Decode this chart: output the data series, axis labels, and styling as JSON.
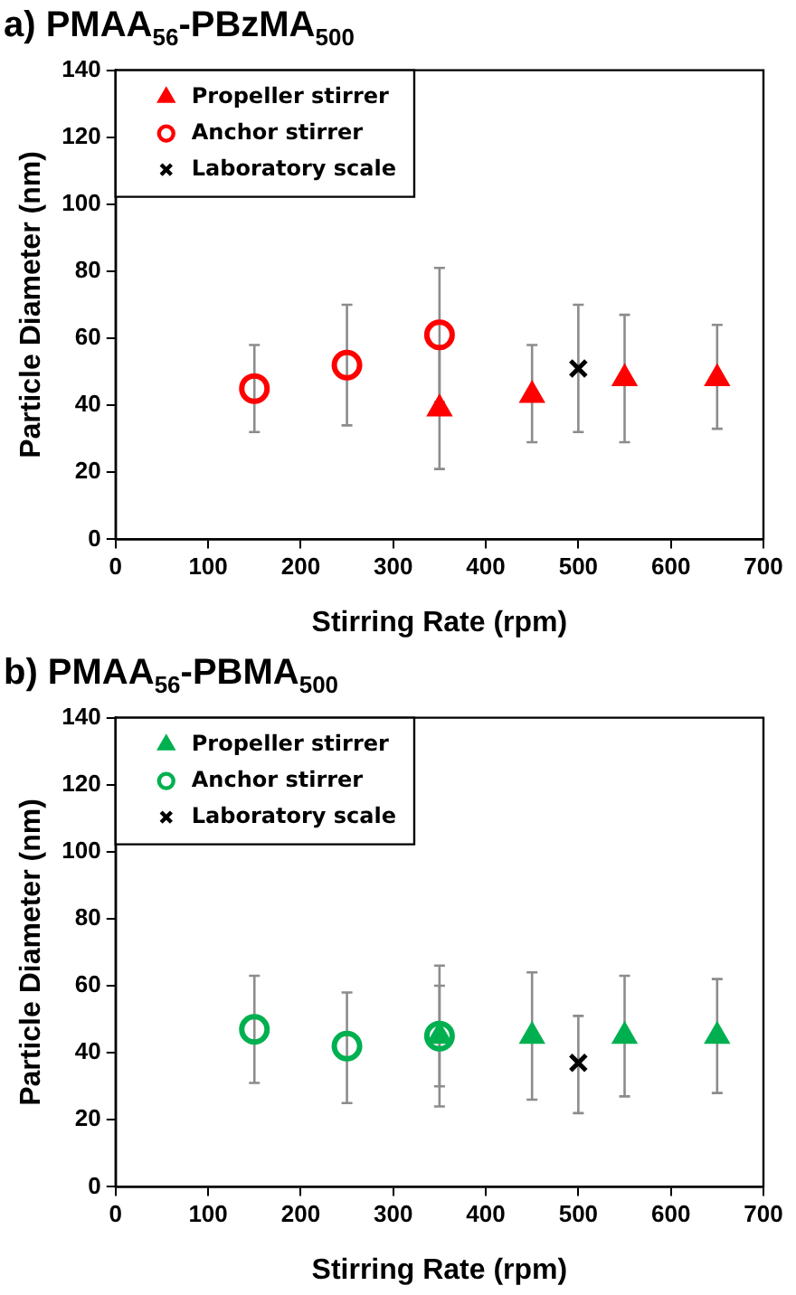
{
  "chart_data": [
    {
      "type": "scatter",
      "title": "a) PMAA$_{56}$-PBzMA$_{500}$",
      "xlabel": "Stirring Rate (rpm)",
      "ylabel": "Particle Diameter (nm)",
      "xlim": [
        0,
        700
      ],
      "xticks": [
        0,
        100,
        200,
        300,
        400,
        500,
        600,
        700
      ],
      "ylim": [
        0,
        140
      ],
      "yticks": [
        0,
        20,
        40,
        60,
        80,
        100,
        120,
        140
      ],
      "grid": false,
      "legend": "top left",
      "series": [
        {
          "name": "Propeller stirrer",
          "color": "#ff0000",
          "marker": "triangle",
          "x": [
            350,
            450,
            550,
            650
          ],
          "values": [
            39,
            43,
            48,
            48
          ],
          "errors": [
            [
              21,
              57
            ],
            [
              29,
              58
            ],
            [
              29,
              67
            ],
            [
              33,
              64
            ]
          ]
        },
        {
          "name": "Anchor stirrer",
          "color": "#ff0000",
          "marker": "circle",
          "x": [
            150,
            250,
            350
          ],
          "values": [
            45,
            52,
            61
          ],
          "errors": [
            [
              32,
              58
            ],
            [
              34,
              70
            ],
            [
              41,
              81
            ]
          ]
        },
        {
          "name": "Laboratory scale",
          "color": "#000000",
          "marker": "cross",
          "x": [
            500
          ],
          "values": [
            51
          ],
          "errors": [
            [
              32,
              70
            ]
          ]
        }
      ]
    },
    {
      "type": "scatter",
      "title": "b) PMAA$_{56}$-PBMA$_{500}$",
      "xlabel": "Stirring Rate (rpm)",
      "ylabel": "Particle Diameter (nm)",
      "xlim": [
        0,
        700
      ],
      "xticks": [
        0,
        100,
        200,
        300,
        400,
        500,
        600,
        700
      ],
      "ylim": [
        0,
        140
      ],
      "yticks": [
        0,
        20,
        40,
        60,
        80,
        100,
        120,
        140
      ],
      "grid": false,
      "legend": "top left",
      "series": [
        {
          "name": "Propeller stirrer",
          "color": "#00b050",
          "marker": "triangle",
          "x": [
            350,
            450,
            550,
            650
          ],
          "values": [
            45,
            45,
            45,
            45
          ],
          "errors": [
            [
              24,
              66
            ],
            [
              26,
              64
            ],
            [
              27,
              63
            ],
            [
              28,
              62
            ]
          ]
        },
        {
          "name": "Anchor stirrer",
          "color": "#00b050",
          "marker": "circle",
          "x": [
            150,
            250,
            350
          ],
          "values": [
            47,
            42,
            45
          ],
          "errors": [
            [
              31,
              63
            ],
            [
              25,
              58
            ],
            [
              30,
              60
            ]
          ]
        },
        {
          "name": "Laboratory scale",
          "color": "#000000",
          "marker": "cross",
          "x": [
            500
          ],
          "values": [
            37
          ],
          "errors": [
            [
              22,
              51
            ]
          ]
        }
      ]
    }
  ]
}
